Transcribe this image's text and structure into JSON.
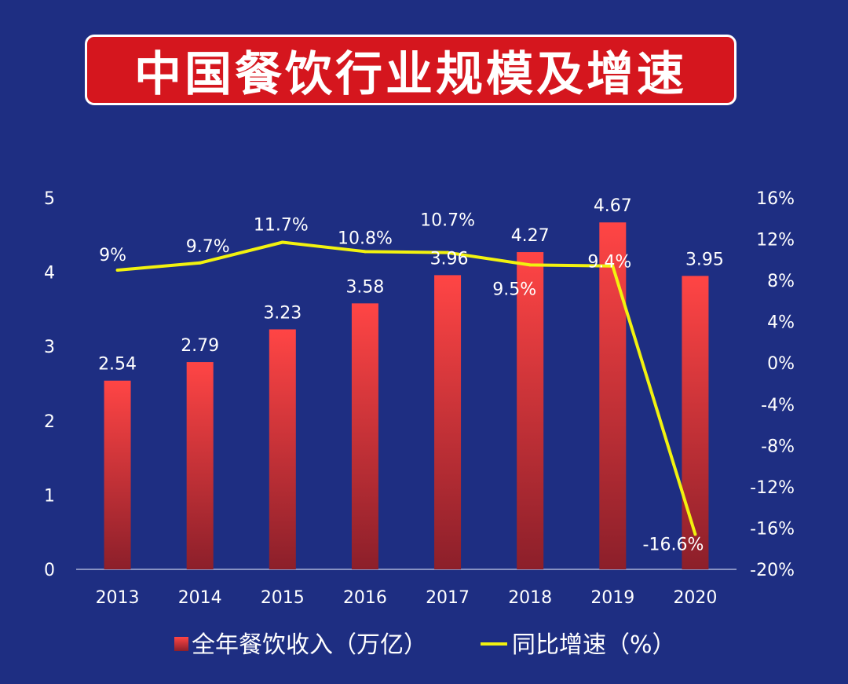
{
  "chart_data": {
    "type": "bar+line",
    "title": "中国餐饮行业规模及增速",
    "categories": [
      "2013",
      "2014",
      "2015",
      "2016",
      "2017",
      "2018",
      "2019",
      "2020"
    ],
    "series": [
      {
        "name": "全年餐饮收入（万亿）",
        "type": "bar",
        "axis": "left",
        "values": [
          2.54,
          2.79,
          3.23,
          3.58,
          3.96,
          4.27,
          4.67,
          3.95
        ],
        "labels": [
          "2.54",
          "2.79",
          "3.23",
          "3.58",
          "3.96",
          "4.27",
          "4.67",
          "3.95"
        ]
      },
      {
        "name": "同比增速（%）",
        "type": "line",
        "axis": "right",
        "values": [
          9,
          9.7,
          11.7,
          10.8,
          10.7,
          9.5,
          9.4,
          -16.6
        ],
        "labels": [
          "9%",
          "9.7%",
          "11.7%",
          "10.8%",
          "10.7%",
          "9.5%",
          "9.4%",
          "-16.6%"
        ]
      }
    ],
    "y_left": {
      "range": [
        0,
        5
      ],
      "ticks": [
        "0",
        "1",
        "2",
        "3",
        "4",
        "5"
      ]
    },
    "y_right": {
      "range": [
        -20,
        16
      ],
      "ticks": [
        "-20%",
        "-16%",
        "-12%",
        "-8%",
        "-4%",
        "0%",
        "4%",
        "8%",
        "12%",
        "16%"
      ]
    },
    "legend_position": "bottom",
    "colors": {
      "bar_top": "#ff4545",
      "bar_bottom": "#8c1f2a",
      "line": "#f2f20f",
      "background": "#1e2e82",
      "title_bg": "#d5161e"
    }
  }
}
